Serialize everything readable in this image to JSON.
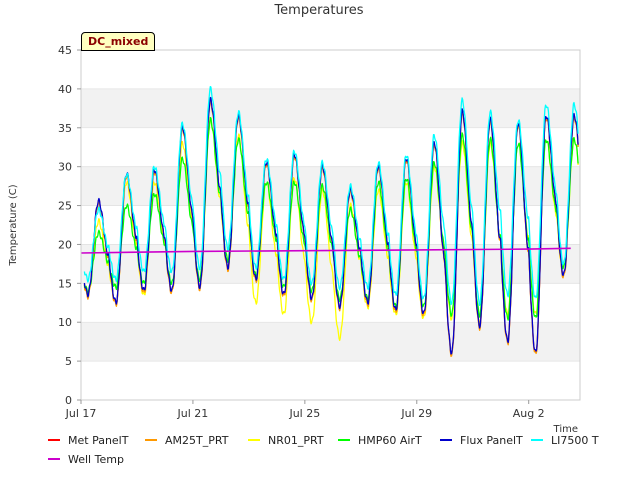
{
  "chart_data": {
    "type": "line",
    "title": "Temperatures",
    "xlabel": "Time",
    "ylabel": "Temperature (C)",
    "ylim": [
      0,
      45
    ],
    "xlim": [
      "2023-07-17T00:00",
      "2023-08-03T20:00"
    ],
    "yticks": [
      0,
      5,
      10,
      15,
      20,
      25,
      30,
      35,
      40,
      45
    ],
    "xticks": [
      {
        "label": "Jul 17",
        "date": "2023-07-17"
      },
      {
        "label": "Jul 21",
        "date": "2023-07-21"
      },
      {
        "label": "Jul 25",
        "date": "2023-07-25"
      },
      {
        "label": "Jul 29",
        "date": "2023-07-29"
      },
      {
        "label": "Aug 2",
        "date": "2023-08-02"
      }
    ],
    "grid": "horizontal bands",
    "legend_position": "bottom",
    "annotation": "DC_mixed",
    "daily_extremes": {
      "dates": [
        "2023-07-17",
        "2023-07-18",
        "2023-07-19",
        "2023-07-20",
        "2023-07-21",
        "2023-07-22",
        "2023-07-23",
        "2023-07-24",
        "2023-07-25",
        "2023-07-26",
        "2023-07-27",
        "2023-07-28",
        "2023-07-29",
        "2023-07-30",
        "2023-07-31",
        "2023-08-01",
        "2023-08-02",
        "2023-08-03"
      ],
      "Met PanelT_min": [
        13.5,
        12.5,
        14.0,
        14.0,
        14.5,
        17.0,
        15.5,
        13.5,
        13.0,
        12.0,
        12.5,
        11.5,
        11.0,
        6.0,
        9.5,
        7.5,
        6.0,
        16.0
      ],
      "Met PanelT_max": [
        25.5,
        29.0,
        29.5,
        35.0,
        38.5,
        36.5,
        30.5,
        31.5,
        30.0,
        27.0,
        30.0,
        31.0,
        33.0,
        37.0,
        36.0,
        35.5,
        36.5,
        36.5
      ],
      "NR01_PRT_min": [
        13.5,
        12.5,
        13.5,
        14.0,
        14.5,
        17.0,
        12.5,
        11.0,
        10.0,
        8.0,
        12.0,
        11.0,
        10.5,
        10.5,
        10.0,
        11.0,
        11.0,
        16.0
      ],
      "NR01_PRT_max": [
        23.0,
        28.0,
        28.0,
        33.0,
        36.0,
        34.0,
        28.0,
        28.5,
        27.0,
        25.0,
        27.0,
        28.0,
        30.0,
        33.0,
        33.0,
        33.0,
        33.5,
        33.5
      ],
      "HMP60 AirT_min": [
        14.0,
        14.5,
        15.0,
        15.0,
        15.5,
        18.0,
        16.0,
        14.5,
        14.0,
        13.0,
        13.0,
        12.0,
        12.0,
        11.0,
        11.0,
        10.5,
        10.5,
        17.0
      ],
      "HMP60 AirT_max": [
        21.5,
        25.0,
        26.5,
        31.0,
        36.0,
        33.5,
        28.0,
        28.0,
        27.5,
        24.5,
        28.0,
        28.5,
        30.5,
        34.0,
        33.5,
        33.0,
        33.5,
        33.5
      ],
      "LI7500 T_min": [
        15.5,
        15.5,
        16.5,
        16.5,
        17.0,
        19.5,
        17.0,
        15.5,
        15.0,
        14.5,
        14.5,
        13.5,
        13.0,
        12.5,
        12.5,
        13.5,
        13.0,
        17.5
      ],
      "LI7500 T_max": [
        24.5,
        29.0,
        30.0,
        35.5,
        40.0,
        37.0,
        31.0,
        32.0,
        30.5,
        27.5,
        30.5,
        31.5,
        34.0,
        38.5,
        37.0,
        36.0,
        38.0,
        38.0
      ]
    },
    "well_temp": {
      "dates": [
        "2023-07-17",
        "2023-07-21",
        "2023-07-25",
        "2023-07-29",
        "2023-08-02",
        "2023-08-03T12:00"
      ],
      "values": [
        18.9,
        19.1,
        19.2,
        19.3,
        19.4,
        19.5
      ]
    },
    "series": [
      {
        "name": "Met PanelT",
        "color": "#ff0000",
        "source": "Met PanelT",
        "offset": 0
      },
      {
        "name": "AM25T_PRT",
        "color": "#ff9900",
        "source": "Met PanelT",
        "offset": -0.2
      },
      {
        "name": "NR01_PRT",
        "color": "#ffff00",
        "source": "NR01_PRT",
        "offset": 0
      },
      {
        "name": "HMP60 AirT",
        "color": "#00ff00",
        "source": "HMP60 AirT",
        "offset": 0
      },
      {
        "name": "Flux PanelT",
        "color": "#0000cc",
        "source": "Met PanelT",
        "offset": 0.1
      },
      {
        "name": "LI7500 T",
        "color": "#00ffff",
        "source": "LI7500 T",
        "offset": 0
      },
      {
        "name": "Well Temp",
        "color": "#cc00cc",
        "source": "well",
        "offset": 0
      }
    ]
  }
}
